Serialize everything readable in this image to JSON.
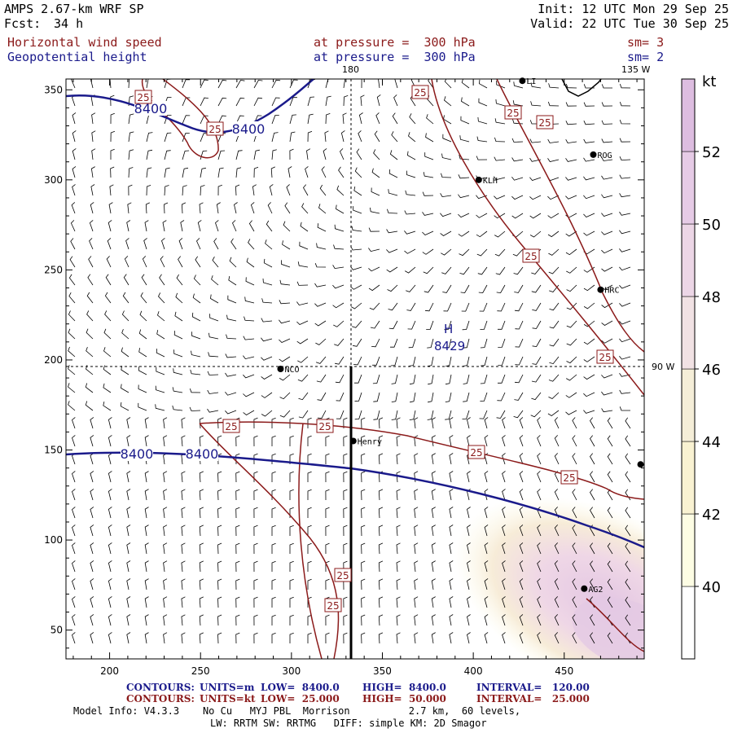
{
  "header": {
    "model": "AMPS 2.67-km WRF SP",
    "forecast_label": "Fcst:",
    "forecast_hours": "34 h",
    "init": "Init: 12 UTC Mon 29 Sep 25",
    "valid": "Valid: 22 UTC Tue 30 Sep 25"
  },
  "fields": [
    {
      "name": "Horizontal wind speed",
      "level": "at pressure =  300 hPa",
      "sm": "sm= 3",
      "color": "#8b1a1a"
    },
    {
      "name": "Geopotential height",
      "level": "at pressure =  300 hPa",
      "sm": "sm= 2",
      "color": "#1a1a8b"
    }
  ],
  "map": {
    "x_ticks": [
      200,
      250,
      300,
      350,
      400,
      450
    ],
    "y_ticks": [
      50,
      100,
      150,
      200,
      250,
      300,
      350
    ],
    "x_range": [
      176,
      494
    ],
    "y_range": [
      34,
      356
    ],
    "meridian_label_top": "180",
    "meridian_label_right_top": "135 W",
    "meridian_label_right": "90 W",
    "high_label": "H",
    "high_value": "8429",
    "height_contour_labels": [
      "8400",
      "8400",
      "8400",
      "8400"
    ],
    "speed_contour_labels": [
      "25",
      "25",
      "25",
      "25",
      "25",
      "25",
      "25",
      "25",
      "25",
      "25",
      "25",
      "25"
    ],
    "stations": [
      {
        "name": "LI",
        "x": 427,
        "y": 355
      },
      {
        "name": "ROG",
        "x": 466,
        "y": 314
      },
      {
        "name": "KLH",
        "x": 403,
        "y": 300
      },
      {
        "name": "HRC",
        "x": 470,
        "y": 239
      },
      {
        "name": "NCO",
        "x": 294,
        "y": 195
      },
      {
        "name": "Henry",
        "x": 334,
        "y": 155
      },
      {
        "name": "",
        "x": 492,
        "y": 142
      },
      {
        "name": "AG2",
        "x": 461,
        "y": 73
      }
    ],
    "colors": {
      "height": "#1a1a8b",
      "speed": "#8b1a1a",
      "grid": "#000000",
      "barb": "#000000"
    }
  },
  "colorbar": {
    "unit": "kt",
    "labels": [
      "40",
      "42",
      "44",
      "46",
      "48",
      "50",
      "52"
    ],
    "colors": [
      "#ffffff",
      "#fdfde4",
      "#f9f2d2",
      "#f5eed8",
      "#f1e2e4",
      "#ecd6e6",
      "#e6cbe6",
      "#ddbde0"
    ]
  },
  "footer": {
    "row1": {
      "label": "CONTOURS:",
      "units": "UNITS=m",
      "low": "LOW=  8400.0",
      "high": "HIGH=  8400.0",
      "interval": "INTERVAL=   120.00"
    },
    "row2": {
      "label": "CONTOURS:",
      "units": "UNITS=kt",
      "low": "LOW=  25.000",
      "high": "HIGH=  50.000",
      "interval": "INTERVAL=   25.000"
    },
    "model_info": "Model Info: V4.3.3    No Cu   MYJ PBL  Morrison          2.7 km,  60 levels,",
    "model_info2": "LW: RRTM SW: RRTMG   DIFF: simple KM: 2D Smagor"
  }
}
